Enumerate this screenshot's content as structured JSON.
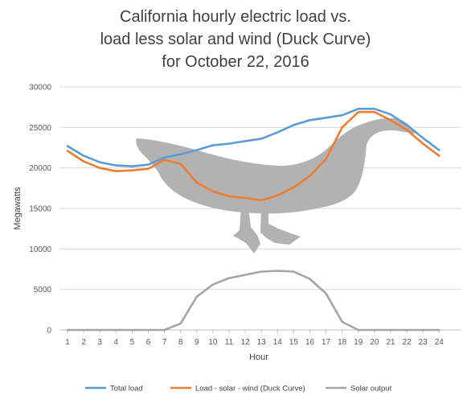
{
  "chart_data": {
    "type": "line",
    "title_lines": [
      "California hourly electric load vs.",
      "load less solar and wind (Duck Curve)",
      "for October 22, 2016"
    ],
    "xlabel": "Hour",
    "ylabel": "Megawatts",
    "x": [
      1,
      2,
      3,
      4,
      5,
      6,
      7,
      8,
      9,
      10,
      11,
      12,
      13,
      14,
      15,
      16,
      17,
      18,
      19,
      20,
      21,
      22,
      23,
      24
    ],
    "ylim": [
      0,
      30000
    ],
    "yticks": [
      0,
      5000,
      10000,
      15000,
      20000,
      25000,
      30000
    ],
    "grid": "horizontal",
    "legend_position": "bottom",
    "illustration": "grey duck silhouette behind the lines",
    "series": [
      {
        "name": "Total load",
        "color": "#5B9BD5",
        "values": [
          22700,
          21500,
          20700,
          20300,
          20200,
          20400,
          21300,
          21700,
          22200,
          22800,
          23000,
          23300,
          23600,
          24400,
          25300,
          25900,
          26200,
          26500,
          27300,
          27300,
          26600,
          25300,
          23700,
          22200
        ]
      },
      {
        "name": "Load - solar - wind (Duck Curve)",
        "color": "#ED7D31",
        "values": [
          22100,
          20800,
          20000,
          19600,
          19700,
          19900,
          21000,
          20500,
          18200,
          17100,
          16500,
          16300,
          16000,
          16600,
          17600,
          19000,
          21100,
          25000,
          26900,
          26900,
          25900,
          24700,
          23000,
          21500
        ]
      },
      {
        "name": "Solar output",
        "color": "#A5A5A5",
        "values": [
          0,
          0,
          0,
          0,
          0,
          0,
          0,
          800,
          4100,
          5600,
          6400,
          6800,
          7200,
          7300,
          7200,
          6300,
          4500,
          1000,
          0,
          0,
          0,
          0,
          0,
          0
        ]
      }
    ]
  }
}
